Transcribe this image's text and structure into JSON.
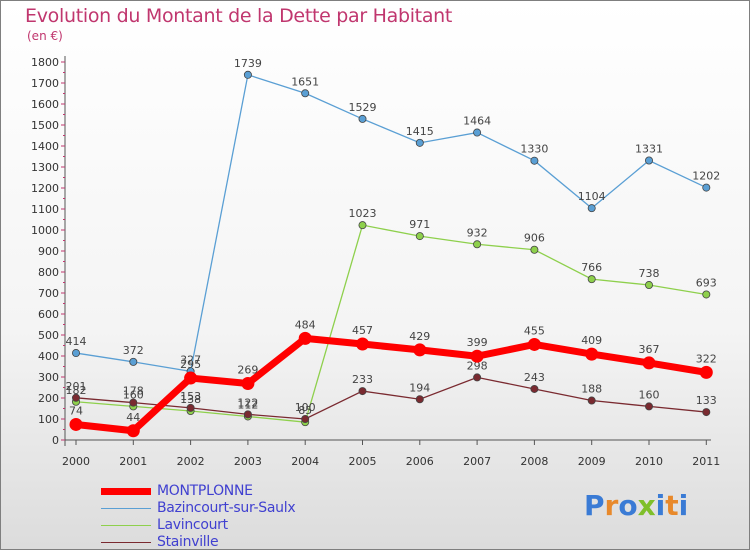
{
  "title": "Evolution du Montant de la Dette par Habitant",
  "unit": "(en €)",
  "logo": {
    "text": "Proxiti",
    "letter_colors": [
      "#3a7bd5",
      "#e8892b",
      "#3a7bd5",
      "#7fbf2a",
      "#3a7bd5",
      "#e8892b",
      "#3a7bd5"
    ]
  },
  "chart_data": {
    "type": "line",
    "title": "Evolution du Montant de la Dette par Habitant",
    "ylabel": "(en €)",
    "xlabel": "",
    "ylim": [
      0,
      1800
    ],
    "yticks": [
      0,
      100,
      200,
      300,
      400,
      500,
      600,
      700,
      800,
      900,
      1000,
      1100,
      1200,
      1300,
      1400,
      1500,
      1600,
      1700,
      1800
    ],
    "x": [
      "2000",
      "2001",
      "2002",
      "2003",
      "2004",
      "2005",
      "2006",
      "2007",
      "2008",
      "2009",
      "2010",
      "2011"
    ],
    "grid": false,
    "legend": "bottom-left",
    "series": [
      {
        "name": "Bazincourt-sur-Saulx",
        "color": "#5a9fd4",
        "values": [
          414,
          372,
          327,
          null,
          null,
          null,
          null,
          null,
          null,
          null,
          null,
          null
        ]
      },
      {
        "name": "Bazincourt-sur-Saulx",
        "color": "#5a9fd4",
        "values": [
          null,
          null,
          327,
          1739,
          1651,
          1529,
          1415,
          1464,
          1330,
          1104,
          1331,
          1202
        ]
      },
      {
        "name": "Lavincourt",
        "color": "#8ed04c",
        "values": [
          182,
          160,
          138,
          112,
          85,
          1023,
          971,
          932,
          906,
          766,
          738,
          693
        ]
      },
      {
        "name": "Stainville",
        "color": "#7a2a30",
        "values": [
          201,
          178,
          153,
          122,
          100,
          233,
          194,
          298,
          243,
          188,
          160,
          133
        ]
      },
      {
        "name": "MONTPLONNE",
        "color": "#ff0000",
        "values": [
          74,
          44,
          295,
          269,
          484,
          457,
          429,
          399,
          455,
          409,
          367,
          322
        ]
      }
    ],
    "legend_entries": [
      {
        "name": "MONTPLONNE",
        "color": "#ff0000",
        "width": 7
      },
      {
        "name": "Bazincourt-sur-Saulx",
        "color": "#5a9fd4",
        "width": 1.5
      },
      {
        "name": "Lavincourt",
        "color": "#8ed04c",
        "width": 1.5
      },
      {
        "name": "Stainville",
        "color": "#7a2a30",
        "width": 1.5
      }
    ]
  }
}
